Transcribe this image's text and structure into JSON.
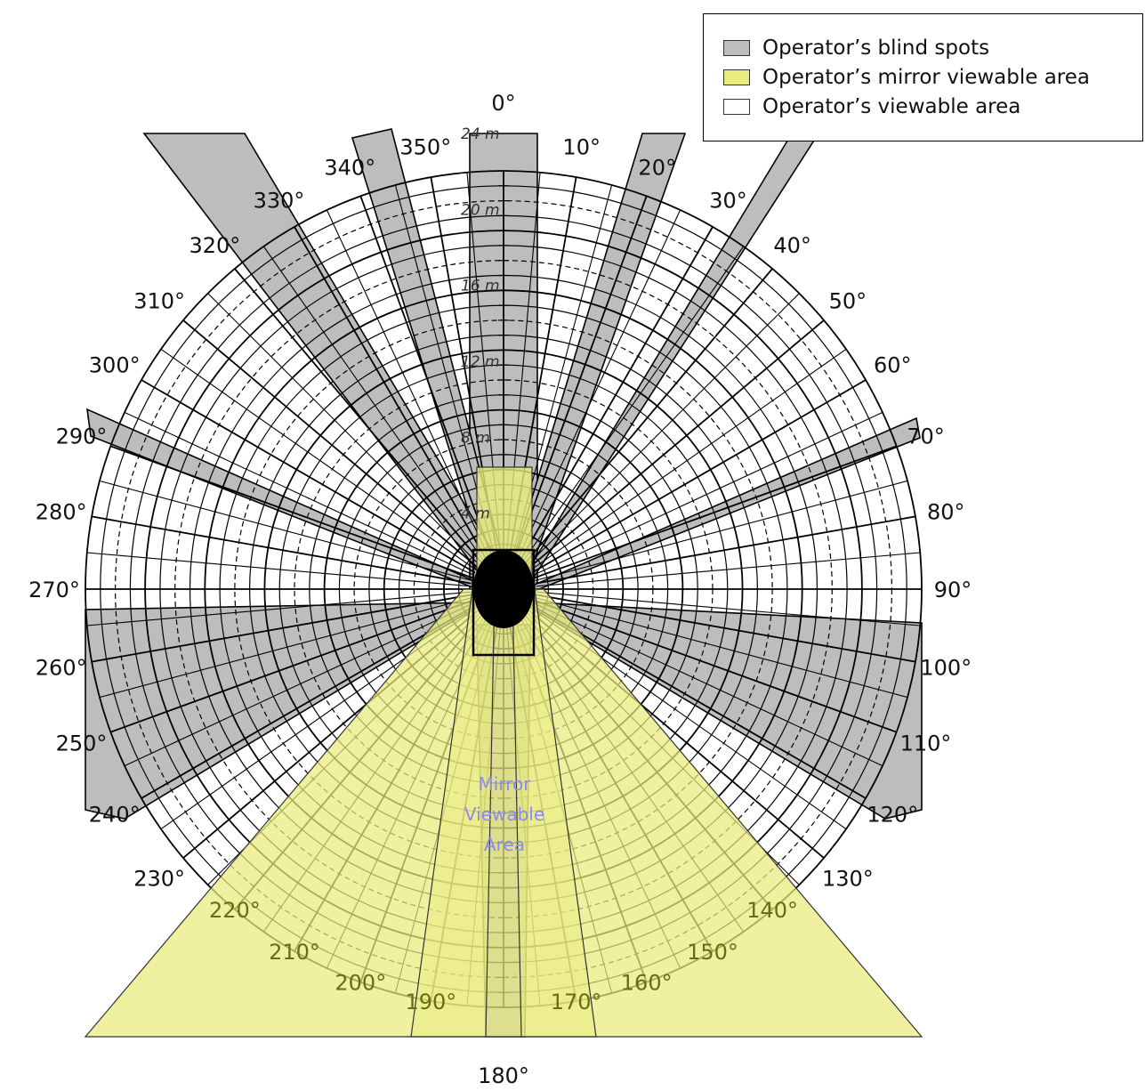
{
  "legend": {
    "items": [
      {
        "label": "Operator’s blind spots",
        "color": "#bdbdbd"
      },
      {
        "label": "Operator’s mirror viewable area",
        "color": "#e9ec7d"
      },
      {
        "label": "Operator’s viewable area",
        "color": "#ffffff"
      }
    ]
  },
  "angle_labels": [
    {
      "text": "0°",
      "deg": 0
    },
    {
      "text": "10°",
      "deg": 10
    },
    {
      "text": "20°",
      "deg": 20
    },
    {
      "text": "30°",
      "deg": 30
    },
    {
      "text": "40°",
      "deg": 40
    },
    {
      "text": "50°",
      "deg": 50
    },
    {
      "text": "60°",
      "deg": 60
    },
    {
      "text": "70°",
      "deg": 70
    },
    {
      "text": "80°",
      "deg": 80
    },
    {
      "text": "90°",
      "deg": 90
    },
    {
      "text": "100°",
      "deg": 100
    },
    {
      "text": "110°",
      "deg": 110
    },
    {
      "text": "120°",
      "deg": 120
    },
    {
      "text": "130°",
      "deg": 130
    },
    {
      "text": "140°",
      "deg": 140
    },
    {
      "text": "150°",
      "deg": 150
    },
    {
      "text": "160°",
      "deg": 160
    },
    {
      "text": "170°",
      "deg": 170
    },
    {
      "text": "180°",
      "deg": 180
    },
    {
      "text": "190°",
      "deg": 190
    },
    {
      "text": "200°",
      "deg": 200
    },
    {
      "text": "210°",
      "deg": 210
    },
    {
      "text": "220°",
      "deg": 220
    },
    {
      "text": "230°",
      "deg": 230
    },
    {
      "text": "240°",
      "deg": 240
    },
    {
      "text": "250°",
      "deg": 250
    },
    {
      "text": "260°",
      "deg": 260
    },
    {
      "text": "270°",
      "deg": 270
    },
    {
      "text": "280°",
      "deg": 280
    },
    {
      "text": "290°",
      "deg": 290
    },
    {
      "text": "300°",
      "deg": 300
    },
    {
      "text": "310°",
      "deg": 310
    },
    {
      "text": "320°",
      "deg": 320
    },
    {
      "text": "330°",
      "deg": 330
    },
    {
      "text": "340°",
      "deg": 340
    },
    {
      "text": "350°",
      "deg": 350
    }
  ],
  "radius_labels": [
    {
      "text": "4 m",
      "m": 4
    },
    {
      "text": "8 m",
      "m": 8
    },
    {
      "text": "12 m",
      "m": 12
    },
    {
      "text": "16 m",
      "m": 16
    },
    {
      "text": "20 m",
      "m": 20
    },
    {
      "text": "24 m",
      "m": 24
    }
  ],
  "mirror_label": "Mirror Viewable Area",
  "colors": {
    "blind": "#bdbdbd",
    "mirror": "#e9ec7d",
    "grid": "#000000",
    "mirror_text": "#8a8af0"
  }
}
